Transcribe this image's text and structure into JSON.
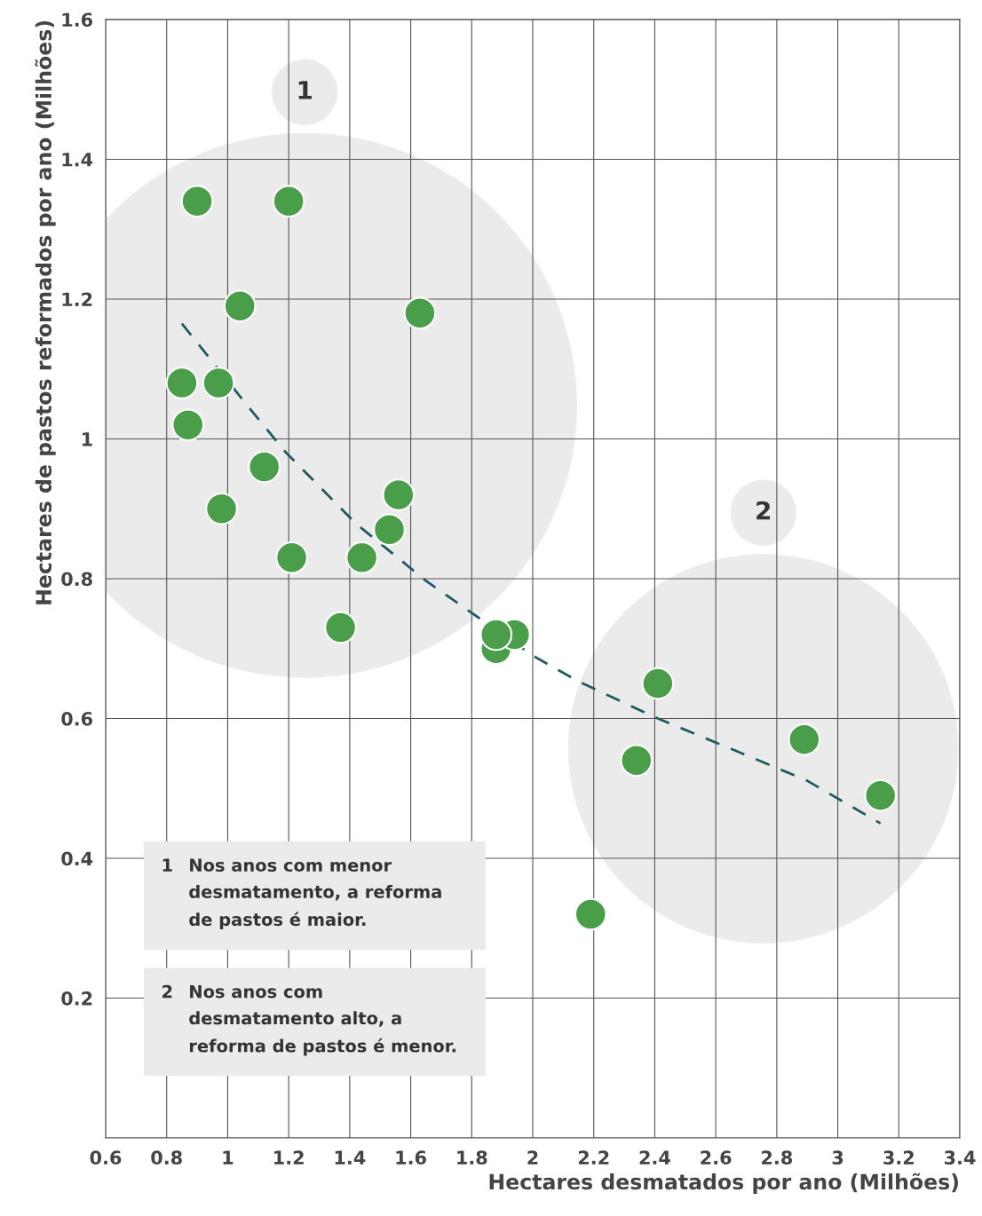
{
  "chart_data": {
    "type": "scatter",
    "xlabel": "Hectares desmatados por ano (Milhões)",
    "ylabel": "Hectares de pastos reformados por ano (Milhões)",
    "xlim": [
      0.6,
      3.4
    ],
    "xticks": [
      0.6,
      0.8,
      1,
      1.2,
      1.4,
      1.6,
      1.8,
      2,
      2.2,
      2.4,
      2.6,
      2.8,
      3,
      3.2,
      3.4
    ],
    "ylim": [
      0,
      1.6
    ],
    "yticks": [
      {
        "value": 0,
        "label": null
      },
      0.2,
      0.4,
      0.6,
      0.8,
      1,
      1.2,
      1.4,
      1.6
    ],
    "grid": true,
    "series": [
      {
        "marker": "circle",
        "color": "#4a9e4a",
        "x": [
          0.9,
          1.2,
          1.04,
          1.63,
          0.85,
          0.97,
          0.87,
          1.12,
          1.56,
          0.98,
          1.53,
          1.21,
          1.44,
          1.37,
          1.88,
          1.94,
          1.88,
          2.41,
          2.34,
          2.89,
          3.14,
          2.19
        ],
        "values": [
          1.34,
          1.34,
          1.19,
          1.18,
          1.08,
          1.08,
          1.02,
          0.96,
          0.92,
          0.9,
          0.87,
          0.83,
          0.83,
          0.73,
          0.7,
          0.72,
          0.72,
          0.65,
          0.54,
          0.57,
          0.49,
          0.32
        ]
      },
      {
        "type": "line",
        "color": "#1f5a5e",
        "line_style": "dashed",
        "x": [
          0.85,
          1.06,
          1.19,
          1.42,
          1.65,
          2.0,
          2.15,
          2.41,
          2.67,
          2.9,
          3.14
        ],
        "values": [
          1.165,
          1.05,
          0.981,
          0.879,
          0.797,
          0.69,
          0.653,
          0.6,
          0.553,
          0.511,
          0.45
        ]
      }
    ],
    "annotations": [
      "1",
      "2",
      "1",
      "Nos anos com menor\ndesmatamento, a reforma\nde pastos é maior.",
      "2",
      "Nos anos com\ndesmatamento alto, a\nreforma de pastos é menor."
    ]
  }
}
